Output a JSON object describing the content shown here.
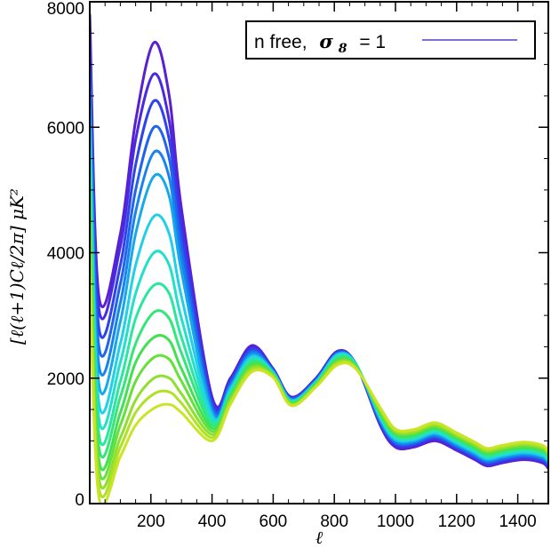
{
  "chart_data": {
    "type": "line",
    "title": "",
    "xlabel": "ℓ",
    "ylabel": "[ℓ(ℓ+1)Cℓ/2π] μK²",
    "xlim": [
      0,
      1500
    ],
    "ylim": [
      0,
      8000
    ],
    "x_ticks": [
      200,
      400,
      600,
      800,
      1000,
      1200,
      1400
    ],
    "y_ticks": [
      0,
      2000,
      4000,
      6000,
      8000
    ],
    "x_tick_labels": [
      "200",
      "400",
      "600",
      "800",
      "1000",
      "1200",
      "1400"
    ],
    "y_tick_labels": [
      "0",
      "2000",
      "4000",
      "6000",
      "8000"
    ],
    "grid": false,
    "legend": {
      "position": "top-right",
      "text": "n free,",
      "sigma_symbol": "σ",
      "sigma_subscript": "8",
      "equals": "= 1",
      "line_color": "#5a3dd0"
    },
    "colors": [
      "#5a1fd0",
      "#4a2ae0",
      "#2f43ea",
      "#1f63ee",
      "#1784ee",
      "#17a8ea",
      "#1fd0e8",
      "#22e0c8",
      "#2ae6a0",
      "#33e67a",
      "#44e054",
      "#66e03a",
      "#8ee02e",
      "#b0e028",
      "#cbe426"
    ],
    "x": [
      0,
      30,
      100,
      150,
      210,
      260,
      300,
      400,
      460,
      530,
      600,
      660,
      740,
      810,
      870,
      950,
      1000,
      1060,
      1130,
      1200,
      1260,
      1300,
      1350,
      1420,
      1480,
      1500
    ],
    "series": [
      {
        "values": [
          7800,
          3300,
          4300,
          6100,
          7350,
          6500,
          4700,
          1700,
          2000,
          2520,
          2150,
          1700,
          2000,
          2430,
          2230,
          1250,
          900,
          900,
          1000,
          850,
          700,
          600,
          650,
          700,
          650,
          560
        ]
      },
      {
        "values": [
          7500,
          3100,
          4100,
          5800,
          6850,
          6100,
          4500,
          1650,
          1970,
          2490,
          2140,
          1690,
          1990,
          2420,
          2230,
          1270,
          930,
          920,
          1030,
          870,
          720,
          620,
          670,
          720,
          670,
          590
        ]
      },
      {
        "values": [
          7200,
          2800,
          3800,
          5400,
          6420,
          5800,
          4300,
          1600,
          1940,
          2460,
          2130,
          1680,
          1980,
          2410,
          2230,
          1290,
          950,
          940,
          1050,
          890,
          740,
          640,
          690,
          740,
          690,
          610
        ]
      },
      {
        "values": [
          6900,
          2500,
          3500,
          5000,
          6000,
          5500,
          4100,
          1550,
          1910,
          2430,
          2120,
          1670,
          1970,
          2400,
          2230,
          1310,
          970,
          960,
          1070,
          910,
          760,
          660,
          710,
          760,
          710,
          630
        ]
      },
      {
        "values": [
          6600,
          2200,
          3200,
          4650,
          5600,
          5200,
          3900,
          1500,
          1880,
          2400,
          2110,
          1660,
          1960,
          2390,
          2230,
          1330,
          990,
          980,
          1090,
          930,
          780,
          680,
          730,
          780,
          730,
          650
        ]
      },
      {
        "values": [
          6300,
          1900,
          2900,
          4300,
          5220,
          4900,
          3700,
          1450,
          1850,
          2370,
          2100,
          1650,
          1950,
          2380,
          2230,
          1350,
          1010,
          1000,
          1110,
          950,
          800,
          700,
          750,
          800,
          750,
          670
        ]
      },
      {
        "values": [
          6000,
          1600,
          2550,
          3800,
          4580,
          4300,
          3300,
          1400,
          1820,
          2340,
          2090,
          1640,
          1940,
          2370,
          2230,
          1370,
          1030,
          1020,
          1130,
          970,
          820,
          720,
          770,
          820,
          770,
          690
        ]
      },
      {
        "values": [
          5700,
          1350,
          2250,
          3350,
          4000,
          3800,
          2950,
          1350,
          1790,
          2310,
          2080,
          1630,
          1930,
          2350,
          2220,
          1390,
          1050,
          1040,
          1150,
          990,
          840,
          740,
          790,
          840,
          790,
          710
        ]
      },
      {
        "values": [
          5400,
          1100,
          1950,
          2950,
          3480,
          3350,
          2650,
          1300,
          1760,
          2280,
          2070,
          1620,
          1920,
          2330,
          2210,
          1410,
          1070,
          1060,
          1170,
          1010,
          860,
          760,
          810,
          860,
          810,
          730
        ]
      },
      {
        "values": [
          5100,
          900,
          1700,
          2550,
          3050,
          2950,
          2400,
          1250,
          1730,
          2250,
          2060,
          1610,
          1910,
          2310,
          2200,
          1430,
          1090,
          1080,
          1190,
          1030,
          880,
          780,
          830,
          880,
          830,
          750
        ]
      },
      {
        "values": [
          4800,
          700,
          1450,
          2250,
          2650,
          2600,
          2150,
          1200,
          1700,
          2220,
          2050,
          1600,
          1900,
          2290,
          2190,
          1450,
          1110,
          1100,
          1210,
          1050,
          900,
          800,
          850,
          900,
          850,
          770
        ]
      },
      {
        "values": [
          4500,
          550,
          1250,
          1950,
          2330,
          2300,
          1950,
          1150,
          1670,
          2190,
          2040,
          1590,
          1890,
          2270,
          2180,
          1470,
          1130,
          1120,
          1230,
          1070,
          920,
          820,
          870,
          920,
          870,
          790
        ]
      },
      {
        "values": [
          4200,
          400,
          1050,
          1650,
          2000,
          2000,
          1750,
          1100,
          1640,
          2160,
          2030,
          1580,
          1880,
          2250,
          2170,
          1490,
          1150,
          1140,
          1250,
          1090,
          940,
          840,
          890,
          940,
          890,
          810
        ]
      },
      {
        "values": [
          3900,
          250,
          900,
          1450,
          1750,
          1780,
          1600,
          1050,
          1610,
          2130,
          2020,
          1570,
          1870,
          2230,
          2160,
          1510,
          1170,
          1160,
          1270,
          1110,
          960,
          860,
          910,
          960,
          910,
          830
        ]
      },
      {
        "values": [
          3600,
          100,
          750,
          1250,
          1520,
          1580,
          1450,
          1000,
          1580,
          2100,
          2010,
          1560,
          1860,
          2210,
          2150,
          1530,
          1190,
          1180,
          1290,
          1130,
          980,
          880,
          930,
          980,
          930,
          850
        ]
      }
    ]
  }
}
